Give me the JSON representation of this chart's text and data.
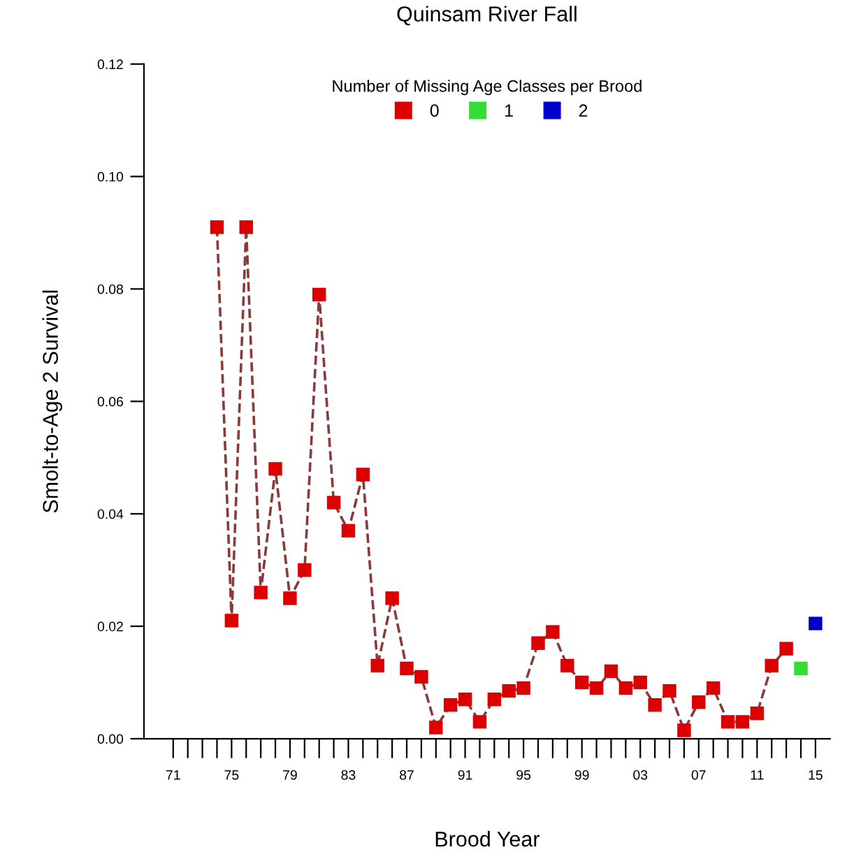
{
  "chart_data": {
    "type": "line",
    "title": "Quinsam River Fall",
    "xlabel": "Brood Year",
    "ylabel": "Smolt-to-Age 2 Survival",
    "legend_title": "Number of Missing Age Classes per Brood",
    "legend": "top",
    "marker": "square",
    "line_style": "dashed",
    "grid": false,
    "series": [
      {
        "name": "0",
        "color": "#dd0000",
        "x": [
          1974,
          1975,
          1976,
          1977,
          1978,
          1979,
          1980,
          1981,
          1982,
          1983,
          1984,
          1985,
          1986,
          1987,
          1988,
          1989,
          1990,
          1991,
          1992,
          1993,
          1994,
          1995,
          1996,
          1997,
          1998,
          1999,
          2000,
          2001,
          2002,
          2003,
          2004,
          2005,
          2006,
          2007,
          2008,
          2009,
          2010,
          2011,
          2012,
          2013
        ],
        "values": [
          0.091,
          0.021,
          0.091,
          0.026,
          0.048,
          0.025,
          0.03,
          0.079,
          0.042,
          0.037,
          0.047,
          0.013,
          0.025,
          0.0125,
          0.011,
          0.002,
          0.006,
          0.007,
          0.003,
          0.007,
          0.0085,
          0.009,
          0.017,
          0.019,
          0.013,
          0.01,
          0.009,
          0.012,
          0.009,
          0.01,
          0.006,
          0.0085,
          0.0015,
          0.0065,
          0.009,
          0.003,
          0.003,
          0.0045,
          0.013,
          0.016
        ]
      },
      {
        "name": "1",
        "color": "#33dd33",
        "x": [
          2014
        ],
        "values": [
          0.0125
        ]
      },
      {
        "name": "2",
        "color": "#0000cc",
        "x": [
          2015
        ],
        "values": [
          0.0205
        ]
      }
    ],
    "xlim": [
      1969,
      2016
    ],
    "xticks": [
      {
        "value": 1971,
        "label": "71"
      },
      {
        "value": 1972,
        "label": null
      },
      {
        "value": 1973,
        "label": null
      },
      {
        "value": 1974,
        "label": null
      },
      {
        "value": 1975,
        "label": "75"
      },
      {
        "value": 1976,
        "label": null
      },
      {
        "value": 1977,
        "label": null
      },
      {
        "value": 1978,
        "label": null
      },
      {
        "value": 1979,
        "label": "79"
      },
      {
        "value": 1980,
        "label": null
      },
      {
        "value": 1981,
        "label": null
      },
      {
        "value": 1982,
        "label": null
      },
      {
        "value": 1983,
        "label": "83"
      },
      {
        "value": 1984,
        "label": null
      },
      {
        "value": 1985,
        "label": null
      },
      {
        "value": 1986,
        "label": null
      },
      {
        "value": 1987,
        "label": "87"
      },
      {
        "value": 1988,
        "label": null
      },
      {
        "value": 1989,
        "label": null
      },
      {
        "value": 1990,
        "label": null
      },
      {
        "value": 1991,
        "label": "91"
      },
      {
        "value": 1992,
        "label": null
      },
      {
        "value": 1993,
        "label": null
      },
      {
        "value": 1994,
        "label": null
      },
      {
        "value": 1995,
        "label": "95"
      },
      {
        "value": 1996,
        "label": null
      },
      {
        "value": 1997,
        "label": null
      },
      {
        "value": 1998,
        "label": null
      },
      {
        "value": 1999,
        "label": "99"
      },
      {
        "value": 2000,
        "label": null
      },
      {
        "value": 2001,
        "label": null
      },
      {
        "value": 2002,
        "label": null
      },
      {
        "value": 2003,
        "label": "03"
      },
      {
        "value": 2004,
        "label": null
      },
      {
        "value": 2005,
        "label": null
      },
      {
        "value": 2006,
        "label": null
      },
      {
        "value": 2007,
        "label": "07"
      },
      {
        "value": 2008,
        "label": null
      },
      {
        "value": 2009,
        "label": null
      },
      {
        "value": 2010,
        "label": null
      },
      {
        "value": 2011,
        "label": "11"
      },
      {
        "value": 2012,
        "label": null
      },
      {
        "value": 2013,
        "label": null
      },
      {
        "value": 2014,
        "label": null
      },
      {
        "value": 2015,
        "label": "15"
      }
    ],
    "ylim": [
      0,
      0.12
    ],
    "yticks": [
      {
        "value": 0,
        "label": "0.00"
      },
      {
        "value": 0.02,
        "label": "0.02"
      },
      {
        "value": 0.04,
        "label": "0.04"
      },
      {
        "value": 0.06,
        "label": "0.06"
      },
      {
        "value": 0.08,
        "label": "0.08"
      },
      {
        "value": 0.1,
        "label": "0.10"
      },
      {
        "value": 0.12,
        "label": "0.12"
      }
    ]
  }
}
